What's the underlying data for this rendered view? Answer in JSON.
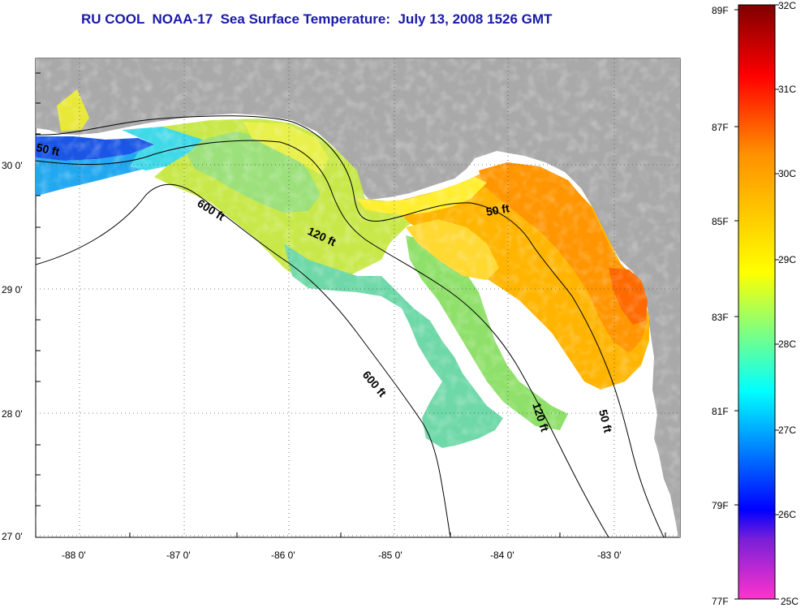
{
  "header": {
    "title": "RU COOL  NOAA-17  Sea Surface Temperature:  July 13, 2008 1526 GMT"
  },
  "map": {
    "lon_ticks": [
      "-88 0'",
      "-87 0'",
      "-86 0'",
      "-85 0'",
      "-84 0'",
      "-83 0'"
    ],
    "lat_ticks": [
      "30 0'",
      "29 0'",
      "28 0'",
      "27 0'"
    ],
    "contours": [
      "50 ft",
      "120 ft",
      "600 ft",
      "600 ft",
      "50 ft",
      "120 ft",
      "50 ft"
    ],
    "colors": {
      "land": "#a9a9a9",
      "no_data": "#ffffff"
    }
  },
  "colorbar": {
    "celsius": [
      "32C",
      "31C",
      "30C",
      "29C",
      "28C",
      "27C",
      "26C",
      "25C"
    ],
    "fahrenheit": [
      "89F",
      "87F",
      "85F",
      "83F",
      "81F",
      "79F",
      "77F"
    ],
    "gradient": [
      "#ff33cc",
      "#0000ff",
      "#00ffff",
      "#ffff00",
      "#ff8000",
      "#ff0000",
      "#800000"
    ]
  }
}
